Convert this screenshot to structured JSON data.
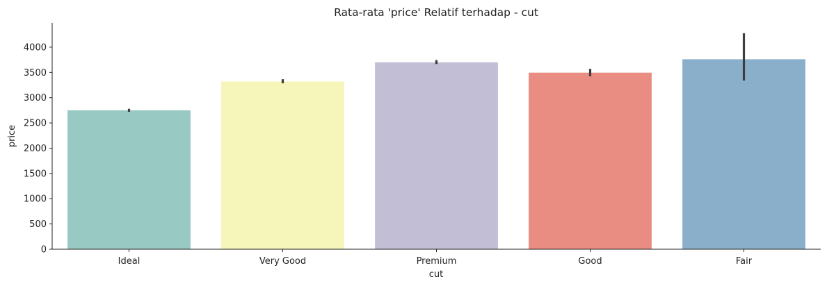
{
  "chart_data": {
    "type": "bar",
    "title": "Rata-rata 'price' Relatif terhadap - cut",
    "xlabel": "cut",
    "ylabel": "price",
    "categories": [
      "Ideal",
      "Very Good",
      "Premium",
      "Good",
      "Fair"
    ],
    "values": [
      2750,
      3320,
      3700,
      3495,
      3760
    ],
    "error_bars": [
      [
        2720,
        2780
      ],
      [
        3285,
        3365
      ],
      [
        3665,
        3745
      ],
      [
        3425,
        3570
      ],
      [
        3340,
        4275
      ]
    ],
    "colors": [
      "#98c9c2",
      "#f6f6bb",
      "#c1bed6",
      "#e98c81",
      "#8aafcb"
    ],
    "yticks": [
      0,
      500,
      1000,
      1500,
      2000,
      2500,
      3000,
      3500,
      4000
    ],
    "ylim": [
      0,
      4480
    ],
    "grid": false,
    "legend": "none"
  }
}
